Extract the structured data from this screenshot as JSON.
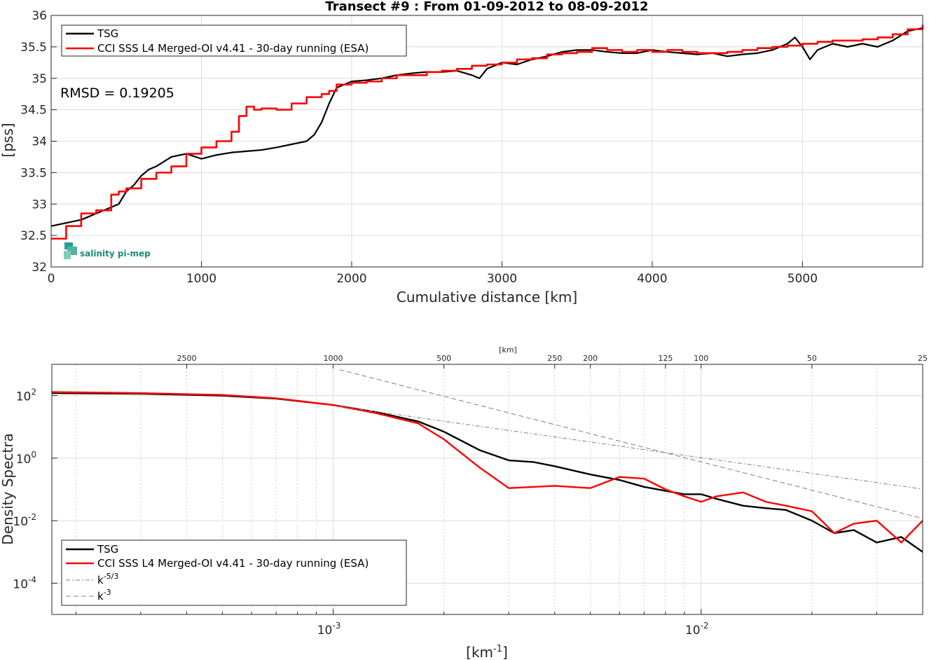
{
  "chart_data": [
    {
      "type": "line",
      "title": "Transect #9 : From 01-09-2012 to 08-09-2012",
      "xlabel": "Cumulative distance [km]",
      "ylabel": "[pss]",
      "xlim": [
        0,
        5800
      ],
      "ylim": [
        32,
        36
      ],
      "xticks": [
        0,
        1000,
        2000,
        3000,
        4000,
        5000
      ],
      "yticks": [
        32,
        32.5,
        33,
        33.5,
        34,
        34.5,
        35,
        35.5,
        36
      ],
      "xtick_labels": [
        "0",
        "1000",
        "2000",
        "3000",
        "4000",
        "5000"
      ],
      "ytick_labels": [
        "32",
        "32.5",
        "33",
        "33.5",
        "34",
        "34.5",
        "35",
        "35.5",
        "36"
      ],
      "grid": true,
      "legend_position": "top-left",
      "annotation": "RMSD = 0.19205",
      "logo": "salinity pi-mep",
      "series": [
        {
          "name": "TSG",
          "color": "#000000",
          "style": "solid",
          "x": [
            0,
            100,
            200,
            300,
            400,
            450,
            500,
            550,
            600,
            650,
            700,
            800,
            900,
            1000,
            1100,
            1200,
            1300,
            1400,
            1500,
            1600,
            1700,
            1750,
            1800,
            1850,
            1900,
            2000,
            2100,
            2200,
            2300,
            2400,
            2500,
            2600,
            2700,
            2800,
            2850,
            2900,
            3000,
            3100,
            3200,
            3300,
            3400,
            3500,
            3600,
            3700,
            3800,
            3900,
            4000,
            4100,
            4200,
            4300,
            4400,
            4500,
            4600,
            4700,
            4800,
            4900,
            4950,
            5000,
            5050,
            5100,
            5200,
            5300,
            5400,
            5500,
            5600,
            5700,
            5800
          ],
          "y": [
            32.65,
            32.7,
            32.75,
            32.85,
            32.95,
            33.0,
            33.2,
            33.3,
            33.45,
            33.55,
            33.6,
            33.75,
            33.8,
            33.72,
            33.78,
            33.82,
            33.84,
            33.86,
            33.9,
            33.95,
            34.0,
            34.1,
            34.3,
            34.6,
            34.85,
            34.95,
            34.97,
            35.0,
            35.05,
            35.08,
            35.1,
            35.1,
            35.12,
            35.05,
            35.0,
            35.15,
            35.25,
            35.22,
            35.3,
            35.35,
            35.42,
            35.45,
            35.45,
            35.42,
            35.4,
            35.4,
            35.45,
            35.42,
            35.4,
            35.38,
            35.4,
            35.35,
            35.38,
            35.4,
            35.45,
            35.55,
            35.65,
            35.5,
            35.3,
            35.45,
            35.55,
            35.5,
            35.55,
            35.5,
            35.6,
            35.75,
            35.8
          ]
        },
        {
          "name": "CCI SSS L4 Merged-OI v4.41 - 30-day running (ESA)",
          "color": "#ff0000",
          "style": "step",
          "x": [
            0,
            100,
            200,
            300,
            400,
            450,
            500,
            600,
            700,
            800,
            900,
            1000,
            1100,
            1200,
            1250,
            1300,
            1350,
            1400,
            1500,
            1600,
            1700,
            1800,
            1850,
            1900,
            2000,
            2100,
            2200,
            2300,
            2400,
            2500,
            2600,
            2700,
            2800,
            2900,
            3000,
            3100,
            3200,
            3300,
            3400,
            3500,
            3600,
            3700,
            3800,
            3900,
            4000,
            4100,
            4200,
            4300,
            4400,
            4500,
            4600,
            4700,
            4800,
            4900,
            5000,
            5100,
            5200,
            5300,
            5400,
            5500,
            5600,
            5700,
            5800
          ],
          "y": [
            32.45,
            32.65,
            32.85,
            32.9,
            33.15,
            33.2,
            33.25,
            33.4,
            33.5,
            33.6,
            33.8,
            33.9,
            34.0,
            34.15,
            34.4,
            34.55,
            34.5,
            34.52,
            34.5,
            34.6,
            34.7,
            34.75,
            34.8,
            34.9,
            34.93,
            34.95,
            35.0,
            35.05,
            35.05,
            35.1,
            35.12,
            35.15,
            35.2,
            35.22,
            35.25,
            35.3,
            35.32,
            35.38,
            35.4,
            35.42,
            35.48,
            35.45,
            35.42,
            35.45,
            35.42,
            35.45,
            35.42,
            35.4,
            35.4,
            35.42,
            35.45,
            35.48,
            35.5,
            35.52,
            35.55,
            35.58,
            35.6,
            35.6,
            35.62,
            35.65,
            35.7,
            35.78,
            35.85
          ]
        }
      ]
    },
    {
      "type": "line",
      "xlabel": "[km-1]",
      "ylabel": "Density Spectra",
      "xscale": "log",
      "yscale": "log",
      "xlim": [
        0.000172,
        0.04
      ],
      "ylim": [
        1e-05,
        1000
      ],
      "xticks": [
        0.001,
        0.01
      ],
      "xtick_labels": [
        {
          "base": "10",
          "exp": "-3"
        },
        {
          "base": "10",
          "exp": "-2"
        }
      ],
      "yticks": [
        0.0001,
        0.01,
        1,
        100
      ],
      "ytick_labels": [
        {
          "base": "10",
          "exp": "-4"
        },
        {
          "base": "10",
          "exp": "-2"
        },
        {
          "base": "10",
          "exp": "0"
        },
        {
          "base": "10",
          "exp": "2"
        }
      ],
      "top_axis_label": "[km]",
      "top_axis_ticks": [
        2500,
        1000,
        500,
        250,
        200,
        125,
        100,
        50,
        25
      ],
      "grid": true,
      "legend_position": "bottom-left",
      "series": [
        {
          "name": "TSG",
          "color": "#000000",
          "style": "solid",
          "x": [
            0.000172,
            0.0003,
            0.0005,
            0.0007,
            0.001,
            0.0013,
            0.0017,
            0.002,
            0.0025,
            0.003,
            0.0035,
            0.004,
            0.005,
            0.006,
            0.007,
            0.008,
            0.009,
            0.01,
            0.011,
            0.013,
            0.015,
            0.017,
            0.02,
            0.023,
            0.026,
            0.03,
            0.035,
            0.04
          ],
          "y": [
            120,
            115,
            100,
            80,
            50,
            30,
            15,
            7,
            1.8,
            0.85,
            0.75,
            0.55,
            0.3,
            0.2,
            0.12,
            0.09,
            0.07,
            0.07,
            0.05,
            0.03,
            0.025,
            0.022,
            0.01,
            0.004,
            0.005,
            0.002,
            0.003,
            0.001
          ]
        },
        {
          "name": "CCI SSS L4 Merged-OI v4.41 - 30-day running (ESA)",
          "color": "#ff0000",
          "style": "solid",
          "x": [
            0.000172,
            0.0003,
            0.0005,
            0.0007,
            0.001,
            0.0013,
            0.0017,
            0.002,
            0.0025,
            0.003,
            0.0035,
            0.004,
            0.005,
            0.006,
            0.007,
            0.008,
            0.009,
            0.01,
            0.011,
            0.013,
            0.015,
            0.017,
            0.02,
            0.023,
            0.026,
            0.03,
            0.035,
            0.04
          ],
          "y": [
            130,
            120,
            105,
            82,
            50,
            28,
            13,
            4,
            0.5,
            0.11,
            0.12,
            0.13,
            0.11,
            0.25,
            0.22,
            0.1,
            0.06,
            0.04,
            0.06,
            0.08,
            0.04,
            0.03,
            0.02,
            0.004,
            0.008,
            0.01,
            0.002,
            0.01
          ]
        },
        {
          "name": "k-5/3",
          "color": "#808080",
          "style": "dashdot",
          "x": [
            0.00104,
            0.04
          ],
          "y": [
            45.2,
            0.102
          ]
        },
        {
          "name": "k-3",
          "color": "#808080",
          "style": "dashed",
          "x": [
            0.00104,
            0.04
          ],
          "y": [
            675,
            0.0118
          ]
        }
      ]
    }
  ]
}
